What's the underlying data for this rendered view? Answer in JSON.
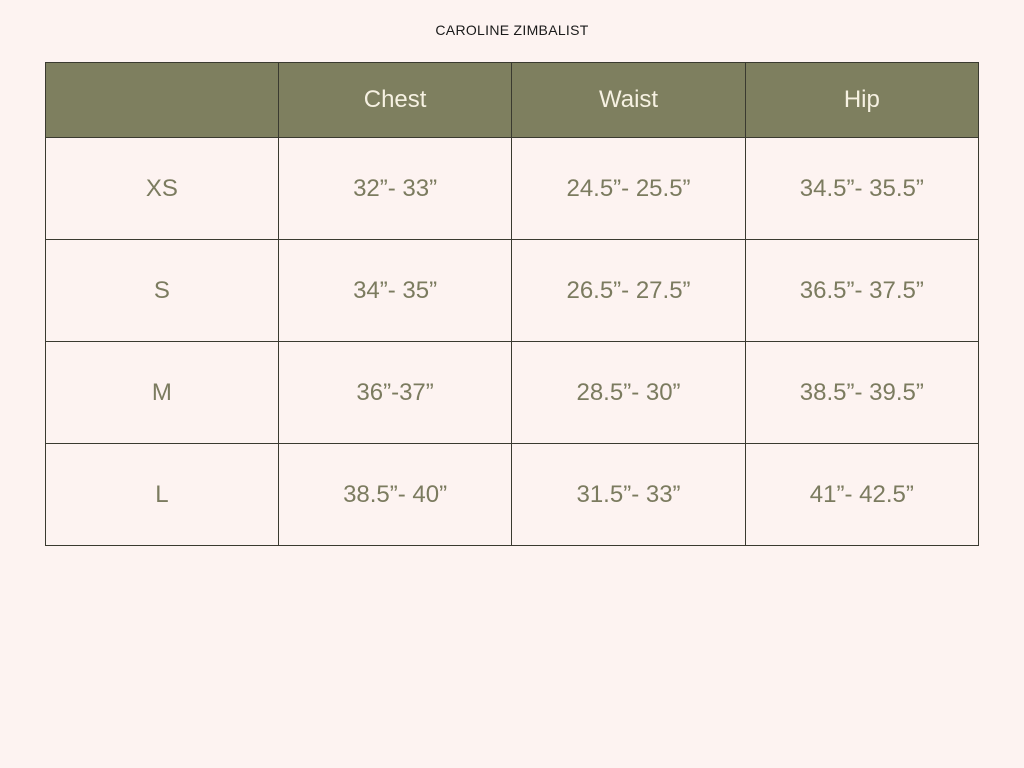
{
  "title": "CAROLINE ZIMBALIST",
  "colors": {
    "header_bg": "#7e7f5f",
    "header_text": "#f6f1e2",
    "cell_text": "#7b7b5f",
    "background": "#fdf3f1"
  },
  "table": {
    "headers": [
      "",
      "Chest",
      "Waist",
      "Hip"
    ],
    "rows": [
      [
        "XS",
        "32”- 33”",
        "24.5”- 25.5”",
        "34.5”- 35.5”"
      ],
      [
        "S",
        "34”- 35”",
        "26.5”- 27.5”",
        "36.5”- 37.5”"
      ],
      [
        "M",
        "36”-37”",
        "28.5”- 30”",
        "38.5”- 39.5”"
      ],
      [
        "L",
        "38.5”- 40”",
        "31.5”- 33”",
        "41”- 42.5”"
      ]
    ]
  }
}
